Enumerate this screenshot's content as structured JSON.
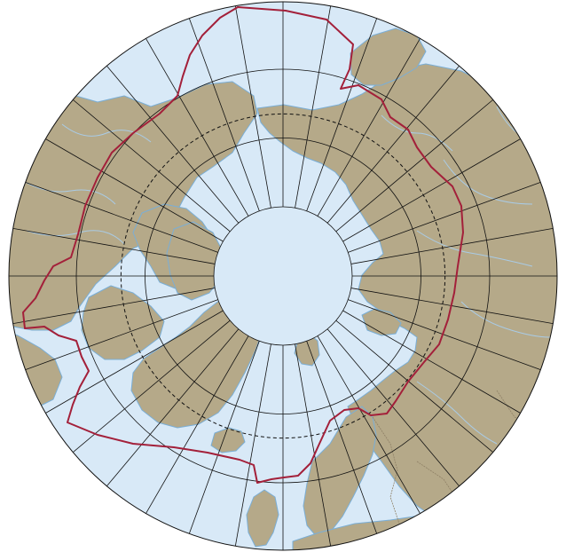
{
  "map": {
    "projection": "north-polar-azimuthal",
    "meridian_interval_deg": 10,
    "parallels_deg": [
      60,
      70,
      80
    ],
    "arctic_circle_deg": 66.5,
    "colors": {
      "ocean": "#d8e9f7",
      "land": "#b5a989",
      "land_edge": "#7aaed6",
      "rivers": "#a9cbe6",
      "grid": "#111111",
      "boundary": "#a3203a",
      "borders": "#8f8066"
    }
  }
}
